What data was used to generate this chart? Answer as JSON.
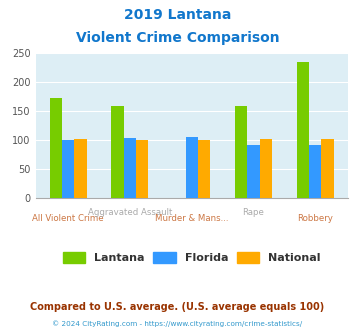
{
  "title_line1": "2019 Lantana",
  "title_line2": "Violent Crime Comparison",
  "categories": [
    "All Violent Crime",
    "Aggravated Assault",
    "Murder & Mans...",
    "Rape",
    "Robbery"
  ],
  "series": {
    "Lantana": [
      172,
      158,
      0,
      158,
      235
    ],
    "Florida": [
      100,
      103,
      105,
      91,
      91
    ],
    "National": [
      101,
      100,
      100,
      101,
      101
    ]
  },
  "colors": {
    "Lantana": "#77cc00",
    "Florida": "#3399ff",
    "National": "#ffaa00"
  },
  "ylim": [
    0,
    250
  ],
  "yticks": [
    0,
    50,
    100,
    150,
    200,
    250
  ],
  "plot_bg": "#ddeef5",
  "title_color": "#1177cc",
  "x_top_labels": [
    "",
    "Aggravated Assault",
    "",
    "Rape",
    ""
  ],
  "x_top_color": "#aaaaaa",
  "x_bot_labels": [
    "All Violent Crime",
    "",
    "Murder & Mans...",
    "",
    "Robbery"
  ],
  "x_bot_color": "#cc7744",
  "footer_text": "Compared to U.S. average. (U.S. average equals 100)",
  "footer_color": "#993300",
  "copyright_text": "© 2024 CityRating.com - https://www.cityrating.com/crime-statistics/",
  "copyright_color": "#3399cc"
}
